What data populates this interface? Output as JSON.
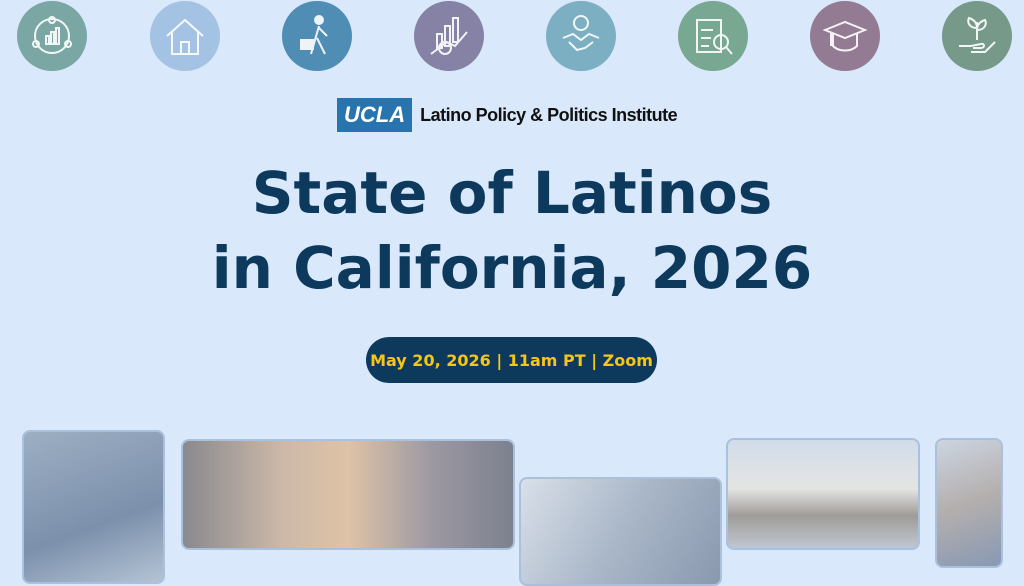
{
  "icons": [
    {
      "name": "community-data-icon",
      "color": "#7aa7a4"
    },
    {
      "name": "house-icon",
      "color": "#a3c2e4"
    },
    {
      "name": "worker-briefcase-icon",
      "color": "#4f8db5"
    },
    {
      "name": "economic-growth-icon",
      "color": "#8582a6"
    },
    {
      "name": "handshake-dollar-icon",
      "color": "#7bafc1"
    },
    {
      "name": "health-clipboard-icon",
      "color": "#78a891"
    },
    {
      "name": "graduation-cap-icon",
      "color": "#937b93"
    },
    {
      "name": "plant-hand-icon",
      "color": "#76998a"
    }
  ],
  "logo": {
    "ucla": "UCLA",
    "institute": "Latino Policy & Politics Institute"
  },
  "title": {
    "line1": "State of Latinos",
    "line2": "in California, 2026"
  },
  "event": {
    "details": "May 20, 2026 | 11am PT | Zoom"
  },
  "colors": {
    "background": "#d9e8fb",
    "title": "#0d3a5c",
    "pill_bg": "#0d3a5c",
    "pill_text": "#f5c518",
    "ucla_blue": "#2774ae"
  }
}
